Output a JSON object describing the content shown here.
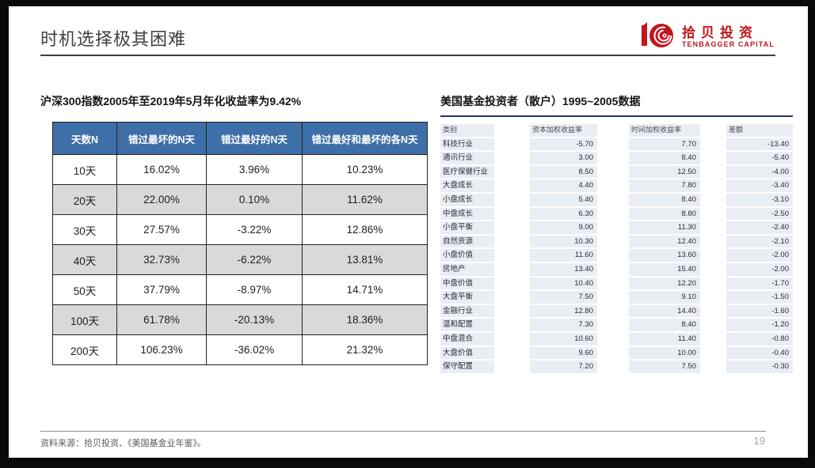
{
  "slide": {
    "title": "时机选择极其困难",
    "page_number": "19",
    "footer_source": "资料来源：拾贝投资、《美国基金业年鉴》。"
  },
  "logo": {
    "name_cn": "拾贝投资",
    "name_en": "TENBAGGER CAPITAL",
    "icon": "tenbagger-shell-10-icon"
  },
  "colors": {
    "brand_red": "#c0161c",
    "table_header_blue": "#3e6fa8",
    "alt_row_gray": "#d9d9d9",
    "right_row_blue": "#e9edf4",
    "navy_rule": "#1f3864"
  },
  "left_table": {
    "title": "沪深300指数2005年至2019年5月年化收益率为9.42%",
    "headers": [
      "天数N",
      "错过最坏的N天",
      "错过最好的N天",
      "错过最好和最坏的各N天"
    ],
    "rows": [
      [
        "10天",
        "16.02%",
        "3.96%",
        "10.23%"
      ],
      [
        "20天",
        "22.00%",
        "0.10%",
        "11.62%"
      ],
      [
        "30天",
        "27.57%",
        "-3.22%",
        "12.86%"
      ],
      [
        "40天",
        "32.73%",
        "-6.22%",
        "13.81%"
      ],
      [
        "50天",
        "37.79%",
        "-8.97%",
        "14.71%"
      ],
      [
        "100天",
        "61.78%",
        "-20.13%",
        "18.36%"
      ],
      [
        "200天",
        "106.23%",
        "-36.02%",
        "21.32%"
      ]
    ]
  },
  "right_table": {
    "title": "美国基金投资者（散户）1995~2005数据",
    "headers": [
      "类别",
      "资本加权收益率",
      "时间加权收益率",
      "差额"
    ],
    "rows": [
      [
        "科技行业",
        "-5.70",
        "7.70",
        "-13.40"
      ],
      [
        "通讯行业",
        "3.00",
        "8.40",
        "-5.40"
      ],
      [
        "医疗保健行业",
        "8.50",
        "12.50",
        "-4.00"
      ],
      [
        "大盘成长",
        "4.40",
        "7.80",
        "-3.40"
      ],
      [
        "小盘成长",
        "5.40",
        "8.40",
        "-3.10"
      ],
      [
        "中盘成长",
        "6.30",
        "8.80",
        "-2.50"
      ],
      [
        "小盘平衡",
        "9.00",
        "11.30",
        "-2.40"
      ],
      [
        "自然资源",
        "10.30",
        "12.40",
        "-2.10"
      ],
      [
        "小盘价值",
        "11.60",
        "13.60",
        "-2.00"
      ],
      [
        "房地产",
        "13.40",
        "15.40",
        "-2.00"
      ],
      [
        "中盘价值",
        "10.40",
        "12.20",
        "-1.70"
      ],
      [
        "大盘平衡",
        "7.50",
        "9.10",
        "-1.50"
      ],
      [
        "金融行业",
        "12.80",
        "14.40",
        "-1.60"
      ],
      [
        "温和配置",
        "7.30",
        "8.40",
        "-1.20"
      ],
      [
        "中盘混合",
        "10.60",
        "11.40",
        "-0.80"
      ],
      [
        "大盘价值",
        "9.60",
        "10.00",
        "-0.40"
      ],
      [
        "保守配置",
        "7.20",
        "7.50",
        "-0.30"
      ]
    ]
  }
}
